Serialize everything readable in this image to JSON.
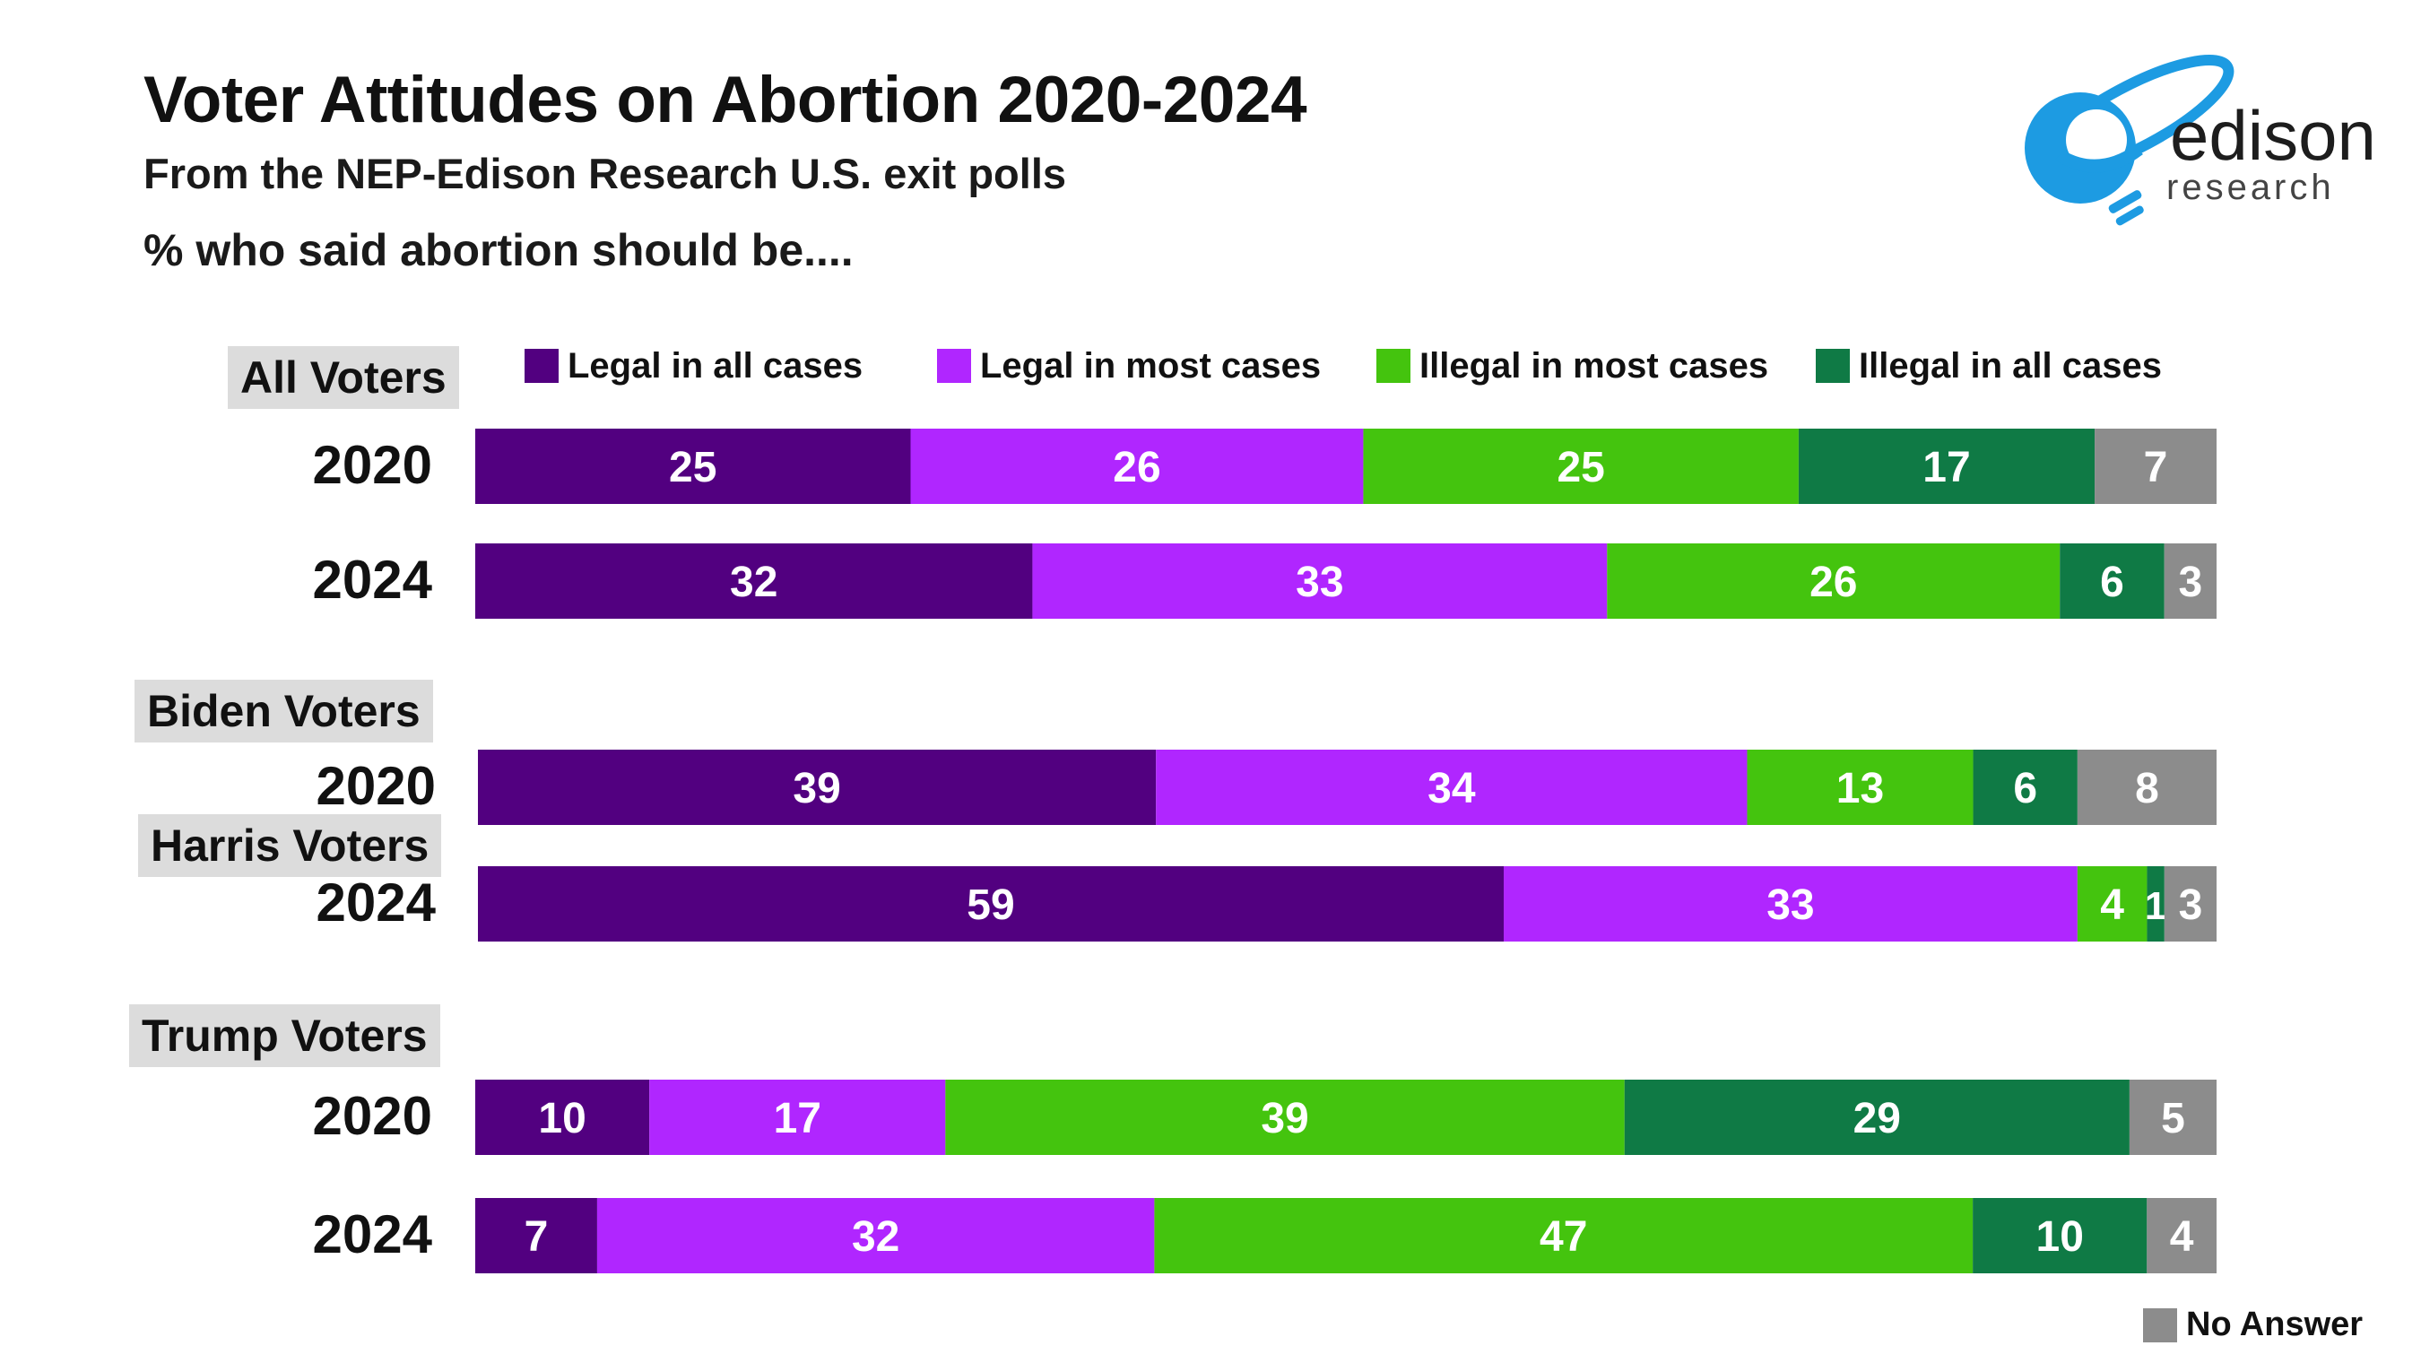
{
  "title": "Voter Attitudes on Abortion 2020-2024",
  "subtitle": "From the NEP-Edison Research U.S. exit polls",
  "question": "% who said abortion should be....",
  "logo": {
    "name": "edison",
    "sub": "research"
  },
  "colors": {
    "legal_all": "#520080",
    "legal_most": "#b026ff",
    "illegal_most": "#44c40e",
    "illegal_all": "#0f7a45",
    "no_answer": "#8c8c8c",
    "logo_blue": "#1d9be2"
  },
  "chart_data": {
    "type": "bar",
    "orientation": "horizontal",
    "stacked": true,
    "title": "Voter Attitudes on Abortion 2020-2024",
    "subtitle": "From the NEP-Edison Research U.S. exit polls",
    "series_names": [
      "Legal in all cases",
      "Legal in most cases",
      "Illegal in most cases",
      "Illegal in all cases",
      "No Answer"
    ],
    "legend_position": "top",
    "groups": [
      {
        "label": "All Voters",
        "rows": [
          {
            "year": "2020",
            "values": [
              25,
              26,
              25,
              17,
              7
            ]
          },
          {
            "year": "2024",
            "values": [
              32,
              33,
              26,
              6,
              3
            ]
          }
        ]
      },
      {
        "label": "Biden Voters",
        "rows": [
          {
            "year": "2020",
            "values": [
              39,
              34,
              13,
              6,
              8
            ]
          }
        ]
      },
      {
        "label": "Harris Voters",
        "rows": [
          {
            "year": "2024",
            "values": [
              59,
              33,
              4,
              1,
              3
            ]
          }
        ]
      },
      {
        "label": "Trump Voters",
        "rows": [
          {
            "year": "2020",
            "values": [
              10,
              17,
              39,
              29,
              5
            ]
          },
          {
            "year": "2024",
            "values": [
              7,
              32,
              47,
              10,
              4
            ]
          }
        ]
      }
    ]
  }
}
